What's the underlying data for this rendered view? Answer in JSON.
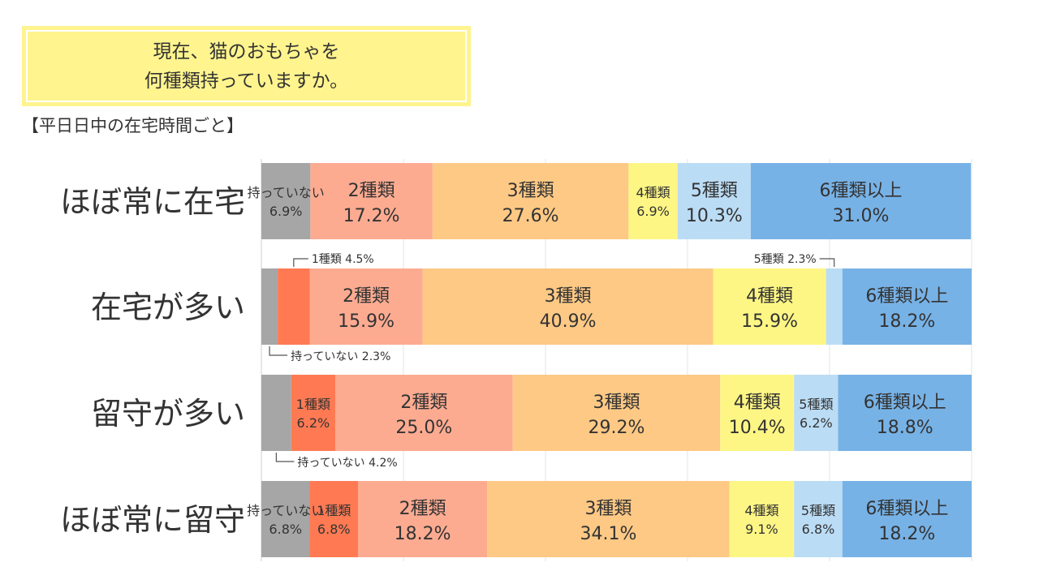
{
  "title": {
    "line1": "現在、猫のおもちゃを",
    "line2": "何種類持っていますか。"
  },
  "subtitle": "【平日日中の在宅時間ごと】",
  "colors": {
    "none": "#a6a6a6",
    "one": "#ff7a53",
    "two": "#fcab91",
    "three": "#fdc985",
    "four": "#fdf685",
    "five": "#bbdcf5",
    "six": "#77b2e6"
  },
  "chart_data": {
    "type": "bar",
    "stacked": true,
    "orientation": "horizontal",
    "percent": true,
    "xlim": [
      0,
      100
    ],
    "grid": true,
    "categories": [
      "ほぼ常に在宅",
      "在宅が多い",
      "留守が多い",
      "ほぼ常に留守"
    ],
    "series": [
      {
        "key": "none",
        "name": "持っていない",
        "values": [
          6.9,
          2.3,
          4.2,
          6.8
        ]
      },
      {
        "key": "one",
        "name": "1種類",
        "values": [
          0,
          4.5,
          6.2,
          6.8
        ]
      },
      {
        "key": "two",
        "name": "2種類",
        "values": [
          17.2,
          15.9,
          25.0,
          18.2
        ]
      },
      {
        "key": "three",
        "name": "3種類",
        "values": [
          27.6,
          40.9,
          29.2,
          34.1
        ]
      },
      {
        "key": "four",
        "name": "4種類",
        "values": [
          6.9,
          15.9,
          10.4,
          9.1
        ]
      },
      {
        "key": "five",
        "name": "5種類",
        "values": [
          10.3,
          2.3,
          6.2,
          6.8
        ]
      },
      {
        "key": "six",
        "name": "6種類以上",
        "values": [
          31.0,
          18.2,
          18.8,
          18.2
        ]
      }
    ]
  }
}
